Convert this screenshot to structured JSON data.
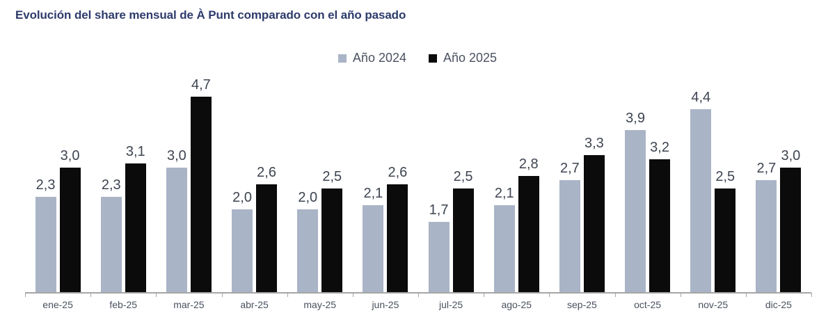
{
  "title": "Evolución del share mensual de À Punt comparado con el año pasado",
  "chart_data": {
    "type": "bar",
    "title": "Evolución del share mensual de À Punt comparado con el año pasado",
    "categories": [
      "ene-25",
      "feb-25",
      "mar-25",
      "abr-25",
      "may-25",
      "jun-25",
      "jul-25",
      "ago-25",
      "sep-25",
      "oct-25",
      "nov-25",
      "dic-25"
    ],
    "series": [
      {
        "name": "Año 2024",
        "color": "#a9b4c6",
        "values": [
          2.3,
          2.3,
          3.0,
          2.0,
          2.0,
          2.1,
          1.7,
          2.1,
          2.7,
          3.9,
          4.4,
          2.7
        ]
      },
      {
        "name": "Año 2025",
        "color": "#0b0b0b",
        "values": [
          3.0,
          3.1,
          4.7,
          2.6,
          2.5,
          2.6,
          2.5,
          2.8,
          3.3,
          3.2,
          2.5,
          3.0
        ]
      }
    ],
    "xlabel": "",
    "ylabel": "",
    "ylim": [
      0,
      5
    ],
    "grid": false,
    "y_axis_visible": false,
    "legend_position": "top-center",
    "value_labels": "above each bar, comma decimal separator"
  },
  "colors": {
    "title": "#2d3b6b",
    "axis": "#a6a6a6",
    "value_label": "#3d4450",
    "category_label": "#49515e",
    "legend_text": "#4a5160",
    "background": "#ffffff"
  }
}
